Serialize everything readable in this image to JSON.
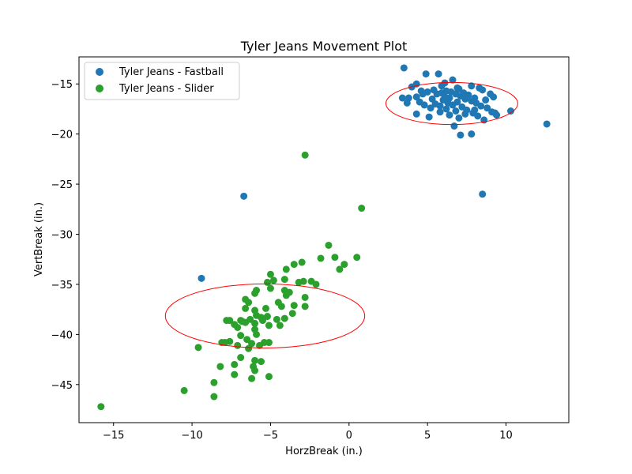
{
  "chart_data": {
    "type": "scatter",
    "title": "Tyler Jeans Movement Plot",
    "xlabel": "HorzBreak (in.)",
    "ylabel": "VertBreak (in.)",
    "xlim": [
      -17.2,
      14.0
    ],
    "ylim": [
      -48.8,
      -12.3
    ],
    "xticks": [
      -15,
      -10,
      -5,
      0,
      5,
      10
    ],
    "yticks": [
      -15,
      -20,
      -25,
      -30,
      -35,
      -40,
      -45
    ],
    "grid": false,
    "legend_position": "upper-left",
    "series": [
      {
        "name": "Tyler Jeans - Fastball",
        "color": "#1f77b4",
        "points": [
          [
            3.5,
            -13.4
          ],
          [
            4.9,
            -14.0
          ],
          [
            5.7,
            -14.0
          ],
          [
            4.3,
            -15.0
          ],
          [
            4.0,
            -15.3
          ],
          [
            5.9,
            -15.2
          ],
          [
            6.6,
            -14.6
          ],
          [
            6.1,
            -14.9
          ],
          [
            7.0,
            -15.5
          ],
          [
            7.8,
            -15.2
          ],
          [
            8.3,
            -15.4
          ],
          [
            8.5,
            -15.6
          ],
          [
            9.0,
            -16.0
          ],
          [
            9.2,
            -16.3
          ],
          [
            3.4,
            -16.4
          ],
          [
            3.8,
            -16.4
          ],
          [
            4.3,
            -16.3
          ],
          [
            4.7,
            -16.0
          ],
          [
            5.0,
            -15.8
          ],
          [
            5.4,
            -15.6
          ],
          [
            5.6,
            -16.0
          ],
          [
            5.9,
            -15.9
          ],
          [
            6.2,
            -15.7
          ],
          [
            6.5,
            -15.8
          ],
          [
            6.8,
            -16.0
          ],
          [
            7.1,
            -16.2
          ],
          [
            7.4,
            -16.5
          ],
          [
            7.8,
            -16.7
          ],
          [
            8.1,
            -16.9
          ],
          [
            8.4,
            -17.2
          ],
          [
            8.8,
            -17.4
          ],
          [
            9.1,
            -17.8
          ],
          [
            9.4,
            -18.1
          ],
          [
            10.3,
            -17.7
          ],
          [
            12.6,
            -19.0
          ],
          [
            3.7,
            -16.9
          ],
          [
            4.5,
            -16.8
          ],
          [
            4.8,
            -17.1
          ],
          [
            5.2,
            -17.4
          ],
          [
            5.5,
            -17.0
          ],
          [
            5.8,
            -17.2
          ],
          [
            6.0,
            -16.6
          ],
          [
            6.3,
            -16.9
          ],
          [
            6.6,
            -17.1
          ],
          [
            6.9,
            -16.8
          ],
          [
            7.2,
            -17.3
          ],
          [
            7.5,
            -17.6
          ],
          [
            7.9,
            -17.9
          ],
          [
            8.2,
            -18.2
          ],
          [
            8.6,
            -18.6
          ],
          [
            7.0,
            -18.4
          ],
          [
            6.4,
            -18.1
          ],
          [
            5.8,
            -17.8
          ],
          [
            5.1,
            -18.3
          ],
          [
            4.3,
            -18.0
          ],
          [
            6.7,
            -19.2
          ],
          [
            7.1,
            -20.1
          ],
          [
            7.8,
            -20.0
          ],
          [
            6.1,
            -16.3
          ],
          [
            6.4,
            -16.4
          ],
          [
            6.9,
            -15.4
          ],
          [
            7.3,
            -15.9
          ],
          [
            7.6,
            -16.1
          ],
          [
            8.0,
            -16.4
          ],
          [
            8.7,
            -16.6
          ],
          [
            6.2,
            -17.5
          ],
          [
            6.8,
            -17.7
          ],
          [
            7.4,
            -18.0
          ],
          [
            8.0,
            -17.6
          ],
          [
            9.3,
            -17.9
          ],
          [
            5.3,
            -16.5
          ],
          [
            4.6,
            -15.7
          ],
          [
            -6.7,
            -26.2
          ],
          [
            8.5,
            -26.0
          ],
          [
            -9.4,
            -34.4
          ]
        ]
      },
      {
        "name": "Tyler Jeans - Slider",
        "color": "#2ca02c",
        "points": [
          [
            -2.8,
            -22.1
          ],
          [
            0.8,
            -27.4
          ],
          [
            -1.3,
            -31.1
          ],
          [
            -1.8,
            -32.4
          ],
          [
            -0.9,
            -32.3
          ],
          [
            0.5,
            -32.3
          ],
          [
            -0.3,
            -33.0
          ],
          [
            -0.6,
            -33.5
          ],
          [
            -3.0,
            -32.8
          ],
          [
            -3.5,
            -33.0
          ],
          [
            -4.0,
            -33.5
          ],
          [
            -5.0,
            -34.0
          ],
          [
            -4.8,
            -34.6
          ],
          [
            -4.1,
            -34.5
          ],
          [
            -2.9,
            -34.7
          ],
          [
            -2.4,
            -34.7
          ],
          [
            -2.1,
            -35.0
          ],
          [
            -3.2,
            -34.8
          ],
          [
            -5.0,
            -35.4
          ],
          [
            -5.2,
            -34.8
          ],
          [
            -5.9,
            -35.6
          ],
          [
            -6.0,
            -35.9
          ],
          [
            -4.1,
            -35.6
          ],
          [
            -3.8,
            -35.8
          ],
          [
            -4.0,
            -36.1
          ],
          [
            -2.8,
            -36.3
          ],
          [
            -4.5,
            -36.8
          ],
          [
            -4.3,
            -37.2
          ],
          [
            -3.5,
            -37.1
          ],
          [
            -2.8,
            -37.2
          ],
          [
            -6.6,
            -36.5
          ],
          [
            -6.4,
            -36.8
          ],
          [
            -6.6,
            -37.4
          ],
          [
            -6.0,
            -37.6
          ],
          [
            -5.3,
            -37.4
          ],
          [
            -3.6,
            -37.9
          ],
          [
            -4.1,
            -38.4
          ],
          [
            -4.6,
            -38.5
          ],
          [
            -5.2,
            -38.2
          ],
          [
            -5.6,
            -38.3
          ],
          [
            -5.9,
            -38.1
          ],
          [
            -6.3,
            -38.5
          ],
          [
            -6.6,
            -38.8
          ],
          [
            -6.9,
            -38.6
          ],
          [
            -7.6,
            -38.6
          ],
          [
            -7.8,
            -38.6
          ],
          [
            -7.3,
            -39.0
          ],
          [
            -7.1,
            -39.3
          ],
          [
            -6.8,
            -38.7
          ],
          [
            -6.0,
            -38.9
          ],
          [
            -5.5,
            -38.6
          ],
          [
            -5.1,
            -39.1
          ],
          [
            -4.4,
            -39.1
          ],
          [
            -6.0,
            -39.5
          ],
          [
            -5.9,
            -40.0
          ],
          [
            -6.9,
            -40.1
          ],
          [
            -6.5,
            -40.5
          ],
          [
            -7.6,
            -40.7
          ],
          [
            -8.1,
            -40.8
          ],
          [
            -7.1,
            -41.1
          ],
          [
            -6.2,
            -40.9
          ],
          [
            -5.7,
            -41.1
          ],
          [
            -5.1,
            -40.8
          ],
          [
            -5.4,
            -40.8
          ],
          [
            -6.4,
            -41.4
          ],
          [
            -7.9,
            -40.8
          ],
          [
            -9.6,
            -41.3
          ],
          [
            -6.0,
            -42.6
          ],
          [
            -5.6,
            -42.7
          ],
          [
            -6.9,
            -42.3
          ],
          [
            -8.2,
            -43.2
          ],
          [
            -7.3,
            -43.0
          ],
          [
            -6.1,
            -43.2
          ],
          [
            -6.0,
            -43.6
          ],
          [
            -7.3,
            -44.0
          ],
          [
            -5.1,
            -44.2
          ],
          [
            -6.2,
            -44.4
          ],
          [
            -8.6,
            -44.8
          ],
          [
            -10.5,
            -45.6
          ],
          [
            -8.6,
            -46.2
          ],
          [
            -15.8,
            -47.2
          ]
        ]
      }
    ],
    "ellipses": [
      {
        "series": "Tyler Jeans - Fastball",
        "center": [
          6.55,
          -16.95
        ],
        "width": 8.4,
        "height": 4.2,
        "color": "#ff0000"
      },
      {
        "series": "Tyler Jeans - Slider",
        "center": [
          -5.35,
          -38.15
        ],
        "width": 12.7,
        "height": 6.4,
        "color": "#ff0000"
      }
    ]
  }
}
